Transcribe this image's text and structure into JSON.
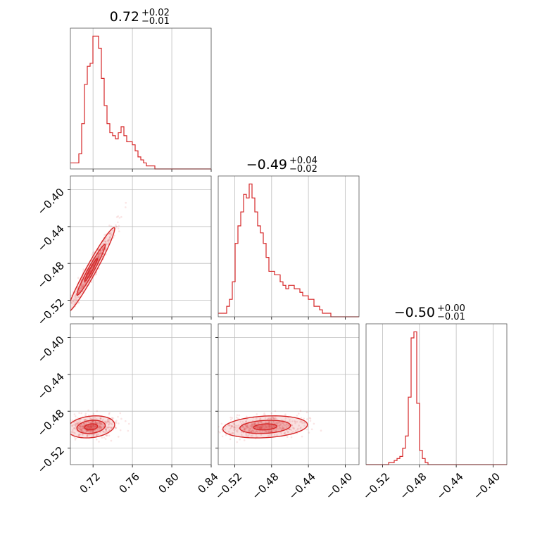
{
  "chart_data": {
    "type": "corner",
    "color": "#d62728",
    "parameters": 3,
    "titles": [
      {
        "value": "0.72",
        "plus": "+0.02",
        "minus": "−0.01"
      },
      {
        "value": "−0.49",
        "plus": "+0.04",
        "minus": "−0.02"
      },
      {
        "value": "−0.50",
        "plus": "+0.00",
        "minus": "−0.01"
      }
    ],
    "ranges": [
      [
        0.697,
        0.84
      ],
      [
        -0.538,
        -0.385
      ],
      [
        -0.538,
        -0.385
      ]
    ],
    "ticks": [
      {
        "values": [
          0.72,
          0.76,
          0.8,
          0.84
        ],
        "labels": [
          "0.72",
          "0.76",
          "0.80",
          "0.84"
        ]
      },
      {
        "values": [
          -0.52,
          -0.48,
          -0.44,
          -0.4
        ],
        "labels": [
          "−0.52",
          "−0.48",
          "−0.44",
          "−0.40"
        ]
      },
      {
        "values": [
          -0.52,
          -0.48,
          -0.44,
          -0.4
        ],
        "labels": [
          "−0.52",
          "−0.48",
          "−0.44",
          "−0.40"
        ]
      }
    ],
    "histograms": [
      {
        "param": 0,
        "bins": [
          0.697,
          0.84
        ],
        "counts": [
          2,
          2,
          2,
          5,
          15,
          28,
          34,
          35,
          44,
          44,
          40,
          30,
          21,
          15,
          12,
          11,
          10,
          12,
          14,
          11,
          9,
          9,
          8,
          6,
          4,
          3,
          2,
          1,
          1,
          1,
          0,
          0,
          0,
          0,
          0,
          0,
          0,
          0,
          0,
          0,
          0,
          0,
          0,
          0,
          0,
          0,
          0,
          0,
          0,
          0
        ]
      },
      {
        "param": 1,
        "bins": [
          -0.538,
          -0.385
        ],
        "counts": [
          1,
          1,
          1,
          3,
          5,
          10,
          21,
          26,
          30,
          35,
          34,
          38,
          34,
          30,
          26,
          24,
          21,
          17,
          13,
          13,
          12,
          12,
          10,
          9,
          8,
          9,
          9,
          8,
          8,
          7,
          6,
          6,
          5,
          5,
          3,
          3,
          2,
          1,
          1,
          1,
          0,
          0,
          0,
          0,
          0,
          0,
          0,
          0,
          0,
          0
        ]
      },
      {
        "param": 2,
        "bins": [
          -0.538,
          -0.385
        ],
        "counts": [
          0,
          0,
          0,
          0,
          0,
          0,
          0,
          0,
          1,
          1,
          2,
          3,
          4,
          8,
          14,
          33,
          62,
          65,
          30,
          7,
          3,
          1,
          0,
          0,
          0,
          0,
          0,
          0,
          0,
          0,
          0,
          0,
          0,
          0,
          0,
          0,
          0,
          0,
          0,
          0,
          0,
          0,
          0,
          0,
          0,
          0,
          0,
          0,
          0,
          0
        ]
      }
    ],
    "scatter": [
      {
        "x": 0,
        "y": 1,
        "distribution": {
          "mean": [
            0.718,
            -0.487
          ],
          "sd": [
            0.012,
            0.023
          ],
          "corr": 0.97
        },
        "n_points": 500
      },
      {
        "x": 0,
        "y": 2,
        "distribution": {
          "mean": [
            0.718,
            -0.497
          ],
          "sd": [
            0.012,
            0.006
          ],
          "corr": 0.2
        },
        "n_points": 500
      },
      {
        "x": 1,
        "y": 2,
        "distribution": {
          "mean": [
            -0.487,
            -0.497
          ],
          "sd": [
            0.023,
            0.006
          ],
          "corr": 0.2
        },
        "n_points": 500
      }
    ],
    "grid": true
  }
}
